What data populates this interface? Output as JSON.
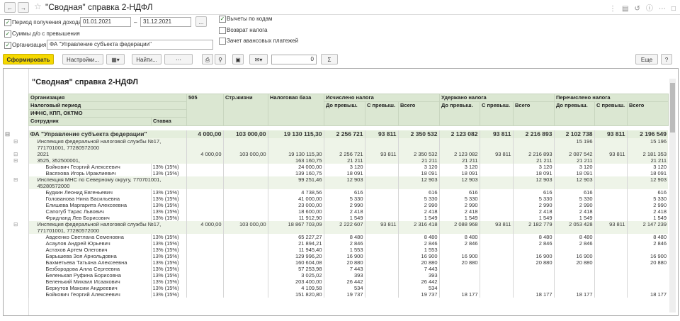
{
  "window": {
    "title": "\"Сводная\" справка 2-НДФЛ"
  },
  "form": {
    "period_label": "Период получения дохода:",
    "date_from": "01.01.2021",
    "dash": "–",
    "date_to": "31.12.2021",
    "select_button": "...",
    "exceed_sums": "Суммы д/о с превышения",
    "org_label": "Организация:",
    "org_value": "ФА \"Управление субъекта федерации\"",
    "deductions": "Вычеты по кодам",
    "refund": "Возврат налога",
    "advance": "Зачет авансовых платежей"
  },
  "toolbar": {
    "generate": "Сформировать",
    "settings": "Настройки...",
    "find": "Найти...",
    "counter": "0",
    "sum": "Σ",
    "more": "Еще"
  },
  "report": {
    "title": "\"Сводная\" справка 2-НДФЛ",
    "header": {
      "org": "Организация",
      "period": "Налоговый период",
      "ifns": "ИФНС, КПП, ОКТМО",
      "employee": "Сотрудник",
      "rate": "Ставка",
      "c505": "505",
      "life": "Стр.жизни",
      "base": "Налоговая база",
      "calculated": "Исчислено налога",
      "withheld": "Удержано налога",
      "transferred": "Перечислено налога",
      "sub": [
        "До превыш.",
        "С превыш.",
        "Всего"
      ]
    },
    "rows": [
      [
        "ФА \"Управление субъекта федерации\"",
        null,
        "4 000,00",
        "103 000,00",
        "19 130 115,30",
        "2 256 721",
        "93 811",
        "2 350 532",
        "2 123 082",
        "93 811",
        "2 216 893",
        "2 102 738",
        "93 811",
        "2 196 549"
      ],
      [
        "Инспекция федеральной налоговой службы №17, 771701001, 77280572000",
        null,
        null,
        null,
        null,
        null,
        null,
        null,
        null,
        null,
        null,
        "15 196",
        null,
        "15 196"
      ],
      [
        "2021",
        null,
        "4 000,00",
        "103 000,00",
        "19 130 115,30",
        "2 256 721",
        "93 811",
        "2 350 532",
        "2 123 082",
        "93 811",
        "2 216 893",
        "2 087 542",
        "93 811",
        "2 181 353"
      ],
      [
        "3525, 352500001,",
        null,
        null,
        null,
        "163 160,75",
        "21 211",
        null,
        "21 211",
        "21 211",
        null,
        "21 211",
        "21 211",
        null,
        "21 211"
      ],
      [
        "Бойкович Георгий Алексеевич",
        "13% (15%)",
        null,
        null,
        "24 000,00",
        "3 120",
        null,
        "3 120",
        "3 120",
        null,
        "3 120",
        "3 120",
        null,
        "3 120"
      ],
      [
        "Васяхова Игорь Ираклиевич",
        "13% (15%)",
        null,
        null,
        "139 160,75",
        "18 091",
        null,
        "18 091",
        "18 091",
        null,
        "18 091",
        "18 091",
        null,
        "18 091"
      ],
      [
        "Инспекция МНС по Северному округу, 770701001, 45280572000",
        null,
        null,
        null,
        "99 251,46",
        "12 903",
        null,
        "12 903",
        "12 903",
        null,
        "12 903",
        "12 903",
        null,
        "12 903"
      ],
      [
        "Будкин Леонид Евгеньевич",
        "13% (15%)",
        null,
        null,
        "4 738,56",
        "616",
        null,
        "616",
        "616",
        null,
        "616",
        "616",
        null,
        "616"
      ],
      [
        "Голованова Нина Васильевна",
        "13% (15%)",
        null,
        null,
        "41 000,00",
        "5 330",
        null,
        "5 330",
        "5 330",
        null,
        "5 330",
        "5 330",
        null,
        "5 330"
      ],
      [
        "Елишева Маргарита Алексеевна",
        "13% (15%)",
        null,
        null,
        "23 000,00",
        "2 990",
        null,
        "2 990",
        "2 990",
        null,
        "2 990",
        "2 990",
        null,
        "2 990"
      ],
      [
        "Сапогуб Тарас Львович",
        "13% (15%)",
        null,
        null,
        "18 600,00",
        "2 418",
        null,
        "2 418",
        "2 418",
        null,
        "2 418",
        "2 418",
        null,
        "2 418"
      ],
      [
        "Фридланд Лев Борисович",
        "13% (15%)",
        null,
        null,
        "11 912,90",
        "1 549",
        null,
        "1 549",
        "1 549",
        null,
        "1 549",
        "1 549",
        null,
        "1 549"
      ],
      [
        "Инспекция федеральной налоговой службы №17, 771701001, 77280572000",
        null,
        "4 000,00",
        "103 000,00",
        "18 867 703,09",
        "2 222 607",
        "93 811",
        "2 316 418",
        "2 088 968",
        "93 811",
        "2 182 779",
        "2 053 428",
        "93 811",
        "2 147 239"
      ],
      [
        "Авдеенко Светлана Семеновна",
        "13% (15%)",
        null,
        null,
        "65 227,27",
        "8 480",
        null,
        "8 480",
        "8 480",
        null,
        "8 480",
        "8 480",
        null,
        "8 480"
      ],
      [
        "Асаулов Андрей Юрьевич",
        "13% (15%)",
        null,
        null,
        "21 894,21",
        "2 846",
        null,
        "2 846",
        "2 846",
        null,
        "2 846",
        "2 846",
        null,
        "2 846"
      ],
      [
        "Астахов Артем Олегович",
        "13% (15%)",
        null,
        null,
        "11 945,40",
        "1 553",
        null,
        "1 553",
        null,
        null,
        null,
        null,
        null,
        null
      ],
      [
        "Барышева Зоя Арнольдовна",
        "13% (15%)",
        null,
        null,
        "129 996,20",
        "16 900",
        null,
        "16 900",
        "16 900",
        null,
        "16 900",
        "16 900",
        null,
        "16 900"
      ],
      [
        "Бахметьева Татьяна Алексеевна",
        "13% (15%)",
        null,
        null,
        "160 604,08",
        "20 880",
        null,
        "20 880",
        "20 880",
        null,
        "20 880",
        "20 880",
        null,
        "20 880"
      ],
      [
        "Безбородова Алла Сергеевна",
        "13% (15%)",
        null,
        null,
        "57 253,98",
        "7 443",
        null,
        "7 443",
        null,
        null,
        null,
        null,
        null,
        null
      ],
      [
        "Беленькая Руфина Борисовна",
        "13% (15%)",
        null,
        null,
        "3 025,02",
        "393",
        null,
        "393",
        null,
        null,
        null,
        null,
        null,
        null
      ],
      [
        "Беленький Михаил Исаакович",
        "13% (15%)",
        null,
        null,
        "203 400,00",
        "26 442",
        null,
        "26 442",
        null,
        null,
        null,
        null,
        null,
        null
      ],
      [
        "Беркутов Максим Андреевич",
        "13% (15%)",
        null,
        null,
        "4 109,58",
        "534",
        null,
        "534",
        null,
        null,
        null,
        null,
        null,
        null
      ],
      [
        "Бойкович Георгий Алексеевич",
        "13% (15%)",
        null,
        null,
        "151 820,80",
        "19 737",
        null,
        "19 737",
        "18 177",
        null,
        "18 177",
        "18 177",
        null,
        "18 177"
      ]
    ]
  }
}
